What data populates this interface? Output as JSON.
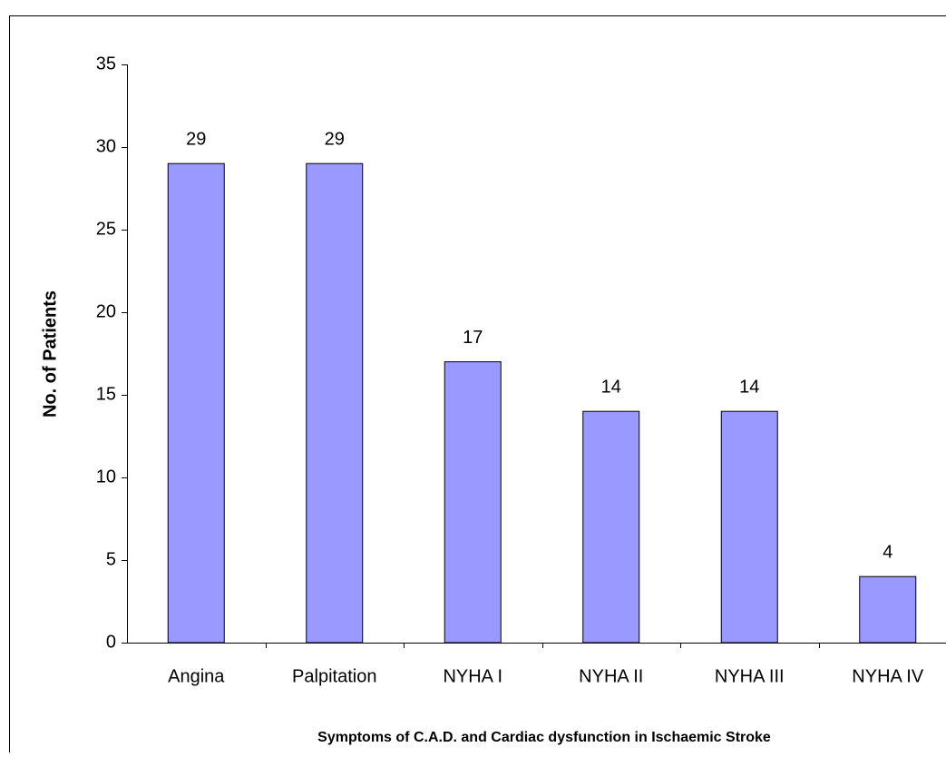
{
  "chart_data": {
    "type": "bar",
    "categories": [
      "Angina",
      "Palpitation",
      "NYHA I",
      "NYHA II",
      "NYHA III",
      "NYHA IV"
    ],
    "values": [
      29,
      29,
      17,
      14,
      14,
      4
    ],
    "color": "#9999ff",
    "ylim": [
      0,
      35
    ],
    "yticks": [
      0,
      5,
      10,
      15,
      20,
      25,
      30,
      35
    ],
    "x_label": "Symptoms of C.A.D. and Cardiac dysfunction in Ischaemic Stroke",
    "y_label": "No. of Patients",
    "grid": false
  }
}
